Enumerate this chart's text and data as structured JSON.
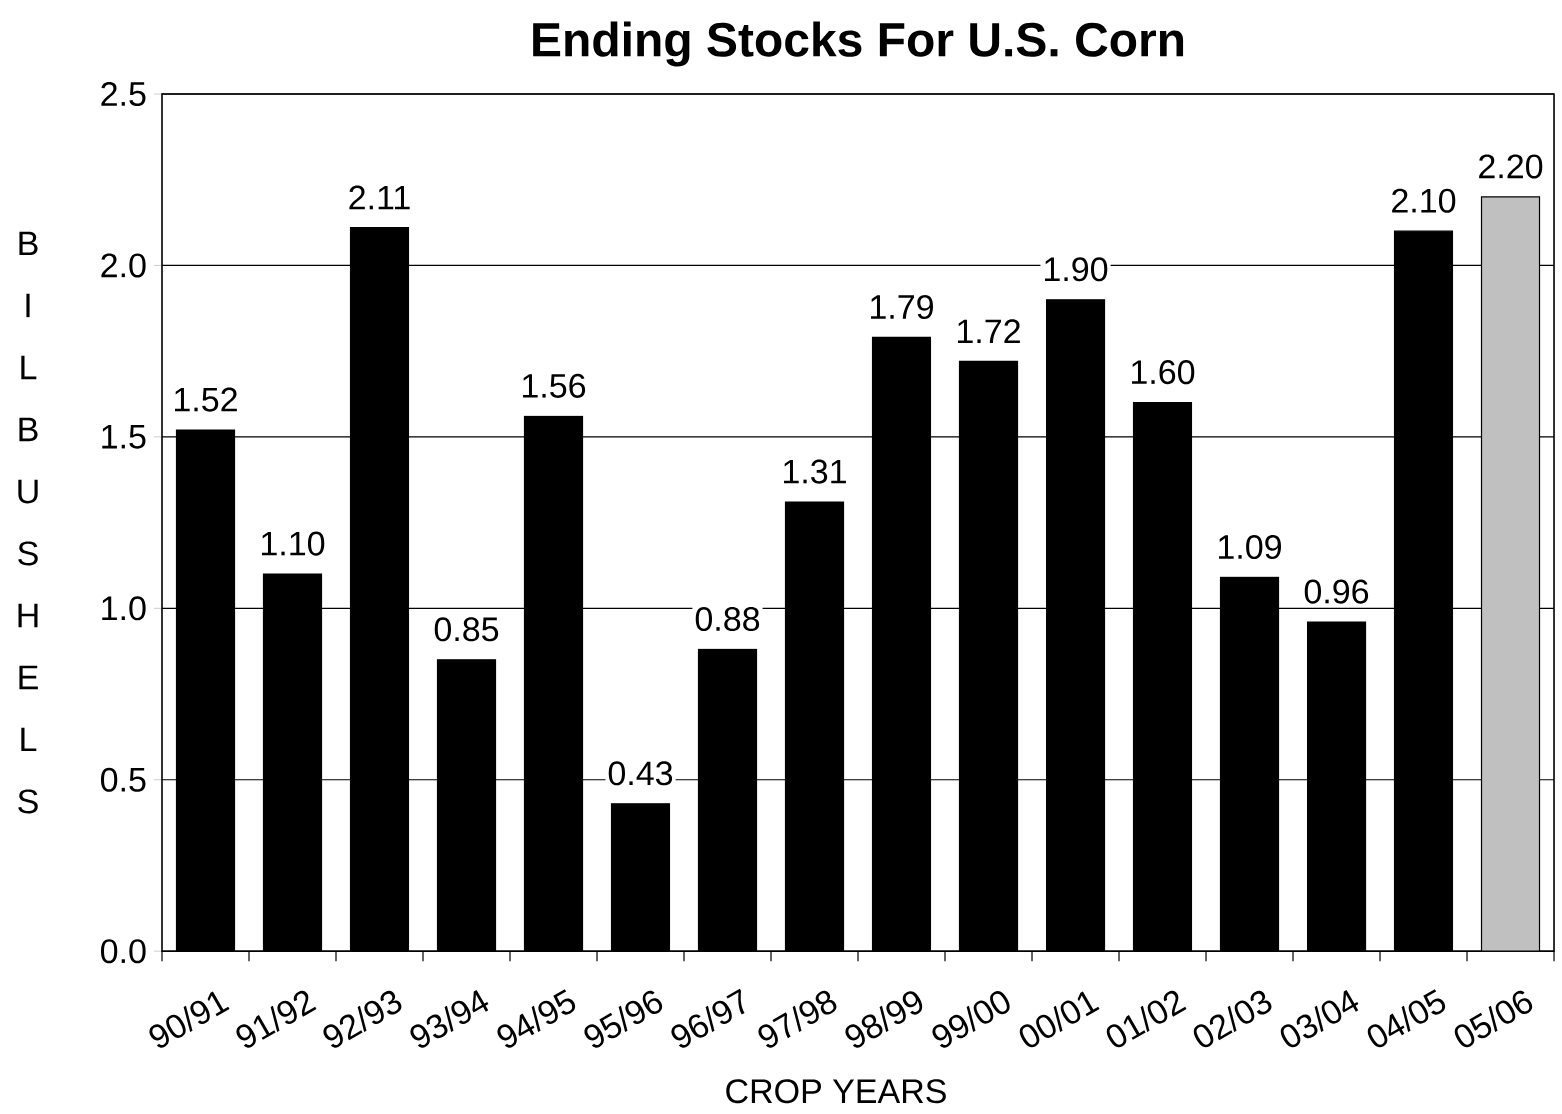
{
  "chart_data": {
    "type": "bar",
    "title": "Ending Stocks For U.S. Corn",
    "xlabel": "CROP YEARS",
    "ylabel": "B I L B U S H E L S",
    "categories": [
      "90/91",
      "91/92",
      "92/93",
      "93/94",
      "94/95",
      "95/96",
      "96/97",
      "97/98",
      "98/99",
      "99/00",
      "00/01",
      "01/02",
      "02/03",
      "03/04",
      "04/05",
      "05/06"
    ],
    "values": [
      1.52,
      1.1,
      2.11,
      0.85,
      1.56,
      0.43,
      0.88,
      1.31,
      1.79,
      1.72,
      1.9,
      1.6,
      1.09,
      0.96,
      2.1,
      2.2
    ],
    "colors": [
      "#000000",
      "#000000",
      "#000000",
      "#000000",
      "#000000",
      "#000000",
      "#000000",
      "#000000",
      "#000000",
      "#000000",
      "#000000",
      "#000000",
      "#000000",
      "#000000",
      "#000000",
      "#c0c0c0"
    ],
    "value_labels": [
      "1.52",
      "1.10",
      "2.11",
      "0.85",
      "1.56",
      "0.43",
      "0.88",
      "1.31",
      "1.79",
      "1.72",
      "1.90",
      "1.60",
      "1.09",
      "0.96",
      "2.10",
      "2.20"
    ],
    "ylim": [
      0,
      2.5
    ],
    "yticks": [
      {
        "value": 0,
        "label": "0.0"
      },
      {
        "value": 0.5,
        "label": "0.5"
      },
      {
        "value": 1.0,
        "label": "1.0"
      },
      {
        "value": 1.5,
        "label": "1.5"
      },
      {
        "value": 2.0,
        "label": "2.0"
      },
      {
        "value": 2.5,
        "label": "2.5"
      }
    ],
    "grid": "y"
  }
}
